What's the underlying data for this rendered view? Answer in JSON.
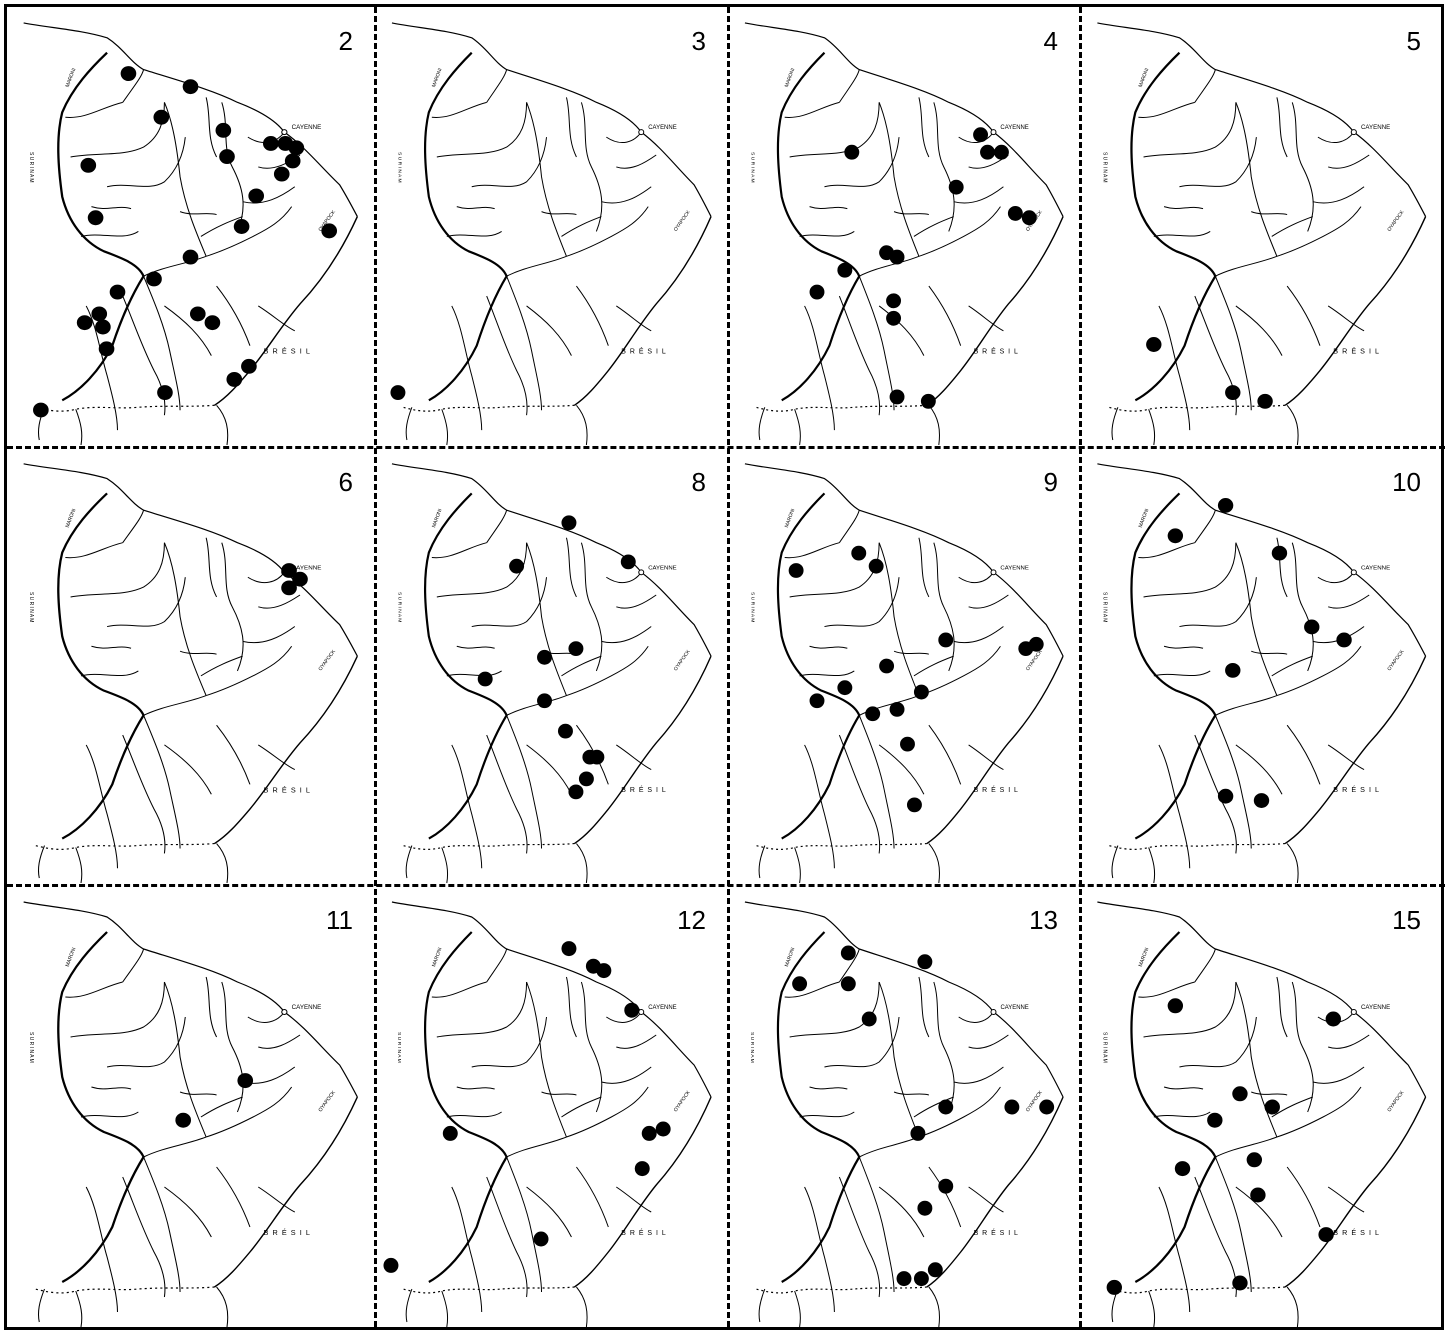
{
  "labels": {
    "cayenne": "CAYENNE",
    "bresil": "B R É S I L",
    "oyapock": "OYAPOCK",
    "maroni": "MARONI",
    "suriname": "S U R I N A M"
  },
  "panels": [
    {
      "number": "2",
      "points": [
        [
          0.33,
          0.15
        ],
        [
          0.5,
          0.18
        ],
        [
          0.42,
          0.25
        ],
        [
          0.22,
          0.36
        ],
        [
          0.24,
          0.48
        ],
        [
          0.59,
          0.28
        ],
        [
          0.6,
          0.34
        ],
        [
          0.72,
          0.31
        ],
        [
          0.76,
          0.31
        ],
        [
          0.79,
          0.32
        ],
        [
          0.78,
          0.35
        ],
        [
          0.75,
          0.38
        ],
        [
          0.68,
          0.43
        ],
        [
          0.64,
          0.5
        ],
        [
          0.88,
          0.51
        ],
        [
          0.5,
          0.57
        ],
        [
          0.4,
          0.62
        ],
        [
          0.3,
          0.65
        ],
        [
          0.25,
          0.7
        ],
        [
          0.21,
          0.72
        ],
        [
          0.26,
          0.73
        ],
        [
          0.52,
          0.7
        ],
        [
          0.56,
          0.72
        ],
        [
          0.27,
          0.78
        ],
        [
          0.66,
          0.82
        ],
        [
          0.62,
          0.85
        ],
        [
          0.43,
          0.88
        ],
        [
          0.09,
          0.92
        ]
      ]
    },
    {
      "number": "3",
      "points": [
        [
          0.06,
          0.88
        ]
      ]
    },
    {
      "number": "4",
      "points": [
        [
          0.35,
          0.33
        ],
        [
          0.72,
          0.29
        ],
        [
          0.74,
          0.33
        ],
        [
          0.78,
          0.33
        ],
        [
          0.65,
          0.41
        ],
        [
          0.82,
          0.47
        ],
        [
          0.86,
          0.48
        ],
        [
          0.45,
          0.56
        ],
        [
          0.48,
          0.57
        ],
        [
          0.33,
          0.6
        ],
        [
          0.25,
          0.65
        ],
        [
          0.47,
          0.67
        ],
        [
          0.47,
          0.71
        ],
        [
          0.48,
          0.89
        ],
        [
          0.57,
          0.9
        ]
      ]
    },
    {
      "number": "5",
      "points": [
        [
          0.2,
          0.77
        ],
        [
          0.42,
          0.88
        ],
        [
          0.51,
          0.9
        ]
      ]
    },
    {
      "number": "6",
      "points": [
        [
          0.77,
          0.28
        ],
        [
          0.8,
          0.3
        ],
        [
          0.77,
          0.32
        ]
      ]
    },
    {
      "number": "8",
      "points": [
        [
          0.55,
          0.17
        ],
        [
          0.4,
          0.27
        ],
        [
          0.72,
          0.26
        ],
        [
          0.57,
          0.46
        ],
        [
          0.48,
          0.48
        ],
        [
          0.31,
          0.53
        ],
        [
          0.48,
          0.58
        ],
        [
          0.54,
          0.65
        ],
        [
          0.61,
          0.71
        ],
        [
          0.63,
          0.71
        ],
        [
          0.6,
          0.76
        ],
        [
          0.57,
          0.79
        ]
      ]
    },
    {
      "number": "9",
      "points": [
        [
          0.19,
          0.28
        ],
        [
          0.37,
          0.24
        ],
        [
          0.42,
          0.27
        ],
        [
          0.62,
          0.44
        ],
        [
          0.85,
          0.46
        ],
        [
          0.88,
          0.45
        ],
        [
          0.45,
          0.5
        ],
        [
          0.33,
          0.55
        ],
        [
          0.55,
          0.56
        ],
        [
          0.25,
          0.58
        ],
        [
          0.41,
          0.61
        ],
        [
          0.48,
          0.6
        ],
        [
          0.51,
          0.68
        ],
        [
          0.53,
          0.82
        ]
      ]
    },
    {
      "number": "10",
      "points": [
        [
          0.26,
          0.2
        ],
        [
          0.4,
          0.13
        ],
        [
          0.55,
          0.24
        ],
        [
          0.64,
          0.41
        ],
        [
          0.73,
          0.44
        ],
        [
          0.42,
          0.51
        ],
        [
          0.4,
          0.8
        ],
        [
          0.5,
          0.81
        ]
      ]
    },
    {
      "number": "11",
      "points": [
        [
          0.65,
          0.44
        ],
        [
          0.48,
          0.53
        ]
      ]
    },
    {
      "number": "12",
      "points": [
        [
          0.55,
          0.14
        ],
        [
          0.62,
          0.18
        ],
        [
          0.65,
          0.19
        ],
        [
          0.73,
          0.28
        ],
        [
          0.21,
          0.56
        ],
        [
          0.78,
          0.56
        ],
        [
          0.82,
          0.55
        ],
        [
          0.76,
          0.64
        ],
        [
          0.47,
          0.8
        ],
        [
          0.04,
          0.86
        ]
      ]
    },
    {
      "number": "13",
      "points": [
        [
          0.2,
          0.22
        ],
        [
          0.34,
          0.15
        ],
        [
          0.34,
          0.22
        ],
        [
          0.4,
          0.3
        ],
        [
          0.56,
          0.17
        ],
        [
          0.62,
          0.5
        ],
        [
          0.54,
          0.56
        ],
        [
          0.81,
          0.5
        ],
        [
          0.91,
          0.5
        ],
        [
          0.62,
          0.68
        ],
        [
          0.56,
          0.73
        ],
        [
          0.5,
          0.89
        ],
        [
          0.55,
          0.89
        ],
        [
          0.59,
          0.87
        ]
      ]
    },
    {
      "number": "15",
      "points": [
        [
          0.26,
          0.27
        ],
        [
          0.7,
          0.3
        ],
        [
          0.44,
          0.47
        ],
        [
          0.53,
          0.5
        ],
        [
          0.37,
          0.53
        ],
        [
          0.48,
          0.62
        ],
        [
          0.28,
          0.64
        ],
        [
          0.49,
          0.7
        ],
        [
          0.68,
          0.79
        ],
        [
          0.44,
          0.9
        ],
        [
          0.09,
          0.91
        ]
      ]
    }
  ]
}
